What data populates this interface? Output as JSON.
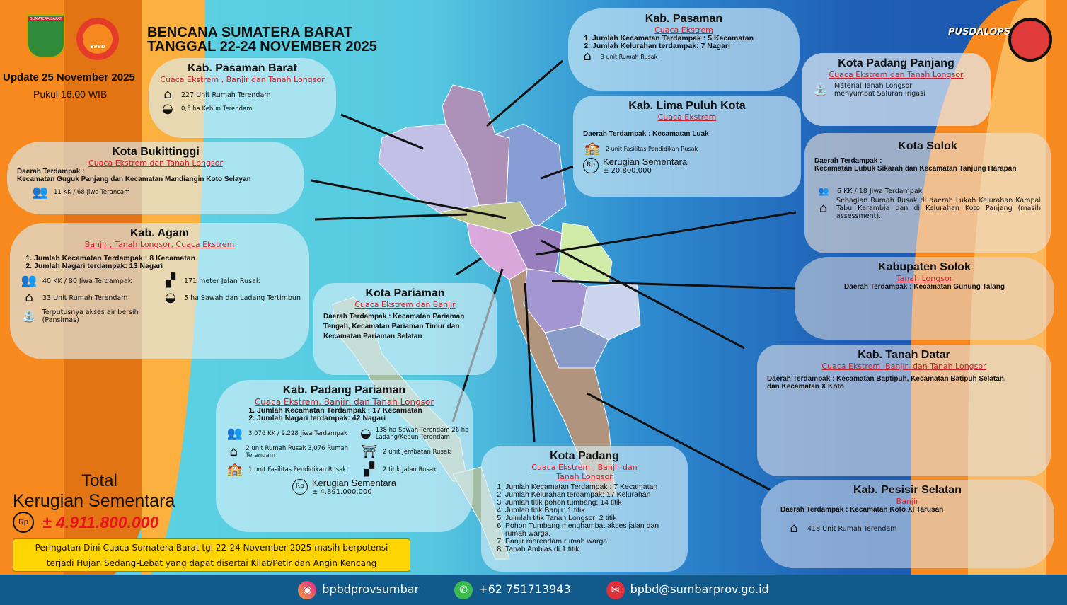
{
  "header": {
    "title1": "BENCANA SUMATERA BARAT",
    "title2": "TANGGAL 22-24 NOVEMBER 2025",
    "update": "Update 25 November 2025",
    "time": "Pukul 16.00 WIB",
    "logo1": "SUMATERA BARAT",
    "logo2": "BPBD",
    "logo3": "PUSDALOPS"
  },
  "pasaman_barat": {
    "title": "Kab. Pasaman Barat",
    "sub": "Cuaca Ekstrem , Banjir dan Tanah Longsor",
    "i1": "227 Unit Rumah Terendam",
    "i2": "0,5 ha Kebun Terendam"
  },
  "bukittinggi": {
    "title": "Kota Bukittinggi",
    "sub": "Cuaca Ekstrem dan Tanah Longsor",
    "d1": "Daerah Terdampak :",
    "d2": "Kecamatan Guguk Panjang dan Kecamatan Mandiangin Koto Selayan",
    "i1": "11 KK / 68 Jiwa Terancam"
  },
  "agam": {
    "title": "Kab. Agam",
    "sub": "Banjir , Tanah Longsor, Cuaca Ekstrem",
    "l1": "Jumlah Kecamatan Terdampak : 8 Kecamatan",
    "l2": "Jumlah Nagari terdampak: 13 Nagari",
    "i1": "40 KK / 80 Jiwa Terdampak",
    "i2": "171 meter Jalan Rusak",
    "i3": "33 Unit Rumah Terendam",
    "i4": "5 ha Sawah dan Ladang Tertimbun",
    "i5": "Terputusnya akses air bersih (Pansimas)"
  },
  "pariaman": {
    "title": "Kota Pariaman",
    "sub": "Cuaca Ekstrem dan Banjir",
    "d": "Daerah Terdampak : Kecamatan Pariaman Tengah, Kecamatan Pariaman Timur dan Kecamatan Pariaman Selatan"
  },
  "padang_pariaman": {
    "title": "Kab. Padang Pariaman",
    "sub": "Cuaca Ekstrem, Banjir, dan Tanah Longsor",
    "l1": "Jumlah Kecamatan Terdampak : 17 Kecamatan",
    "l2": "Jumlah Nagari terdampak: 42 Nagari",
    "i1": "3.076 KK / 9.228 Jiwa Terdampak",
    "i2": "138 ha Sawah Terendam 26 ha Ladang/Kebun Terendam",
    "i3": "2 unit Rumah Rusak 3,076 Rumah Terendam",
    "i4": "2 unit Jembatan Rusak",
    "i5": "1 unit Fasilitas Pendidikan Rusak",
    "i6": "2 titik Jalan Rusak",
    "loss_label": "Kerugian Sementara",
    "loss": "± 4.891.000.000"
  },
  "padang": {
    "title": "Kota Padang",
    "sub": "Cuaca Ekstrem , Banjir dan Tanah Longsor",
    "items": [
      "Jumlah Kecamatan Terdampak : 7 Kecamatan",
      "Jumlah Kelurahan terdampak: 17 Kelurahan",
      "Jumlah titik pohon tumbang: 14 titik",
      "Jumlah titik Banjir: 1 titik",
      "Juimlah titik Tanah Longsor: 2 titik",
      "Pohon Tumbang menghambat akses jalan dan rumah warga.",
      "Banjir merendam rumah warga",
      "Tanah Amblas di 1 titik"
    ]
  },
  "pasaman": {
    "title": "Kab. Pasaman",
    "sub": "Cuaca Ekstrem",
    "l1": "Jumlah Kecamatan Terdampak : 5 Kecamatan",
    "l2": "Jumlah Kelurahan terdampak: 7 Nagari",
    "i1": "3 unit Rumah Rusak"
  },
  "lima_puluh": {
    "title": "Kab. Lima Puluh Kota",
    "sub": "Cuaca Ekstrem",
    "d": "Daerah Terdampak : Kecamatan Luak",
    "i1": "2 unit Fasilitas Pendidikan Rusak",
    "loss_label": "Kerugian Sementara",
    "loss": "± 20.800.000"
  },
  "padang_panjang": {
    "title": "Kota Padang Panjang",
    "sub": "Cuaca Ekstrem dan Tanah Longsor",
    "i1": "Material Tanah Longsor menyumbat Saluran Irigasi"
  },
  "kota_solok": {
    "title": "Kota Solok",
    "d1": "Daerah Terdampak :",
    "d2": "Kecamatan Lubuk Sikarah dan Kecamatan Tanjung Harapan",
    "i1": "6 KK / 18 Jiwa Terdampak",
    "i2": "Sebagian Rumah Rusak di daerah Lukah Kelurahan Kampai Tabu Karambia dan di Kelurahan Koto Panjang (masih assessment)."
  },
  "kab_solok": {
    "title": "Kabupaten Solok",
    "sub": "Tanah Longsor",
    "d": "Daerah Terdampak : Kecamatan Gunung Talang"
  },
  "tanah_datar": {
    "title": "Kab. Tanah Datar",
    "sub": "Cuaca Ekstrem ,Banjir, dan Tanah Longsor",
    "d": "Daerah Terdampak : Kecamatan Baptipuh, Kecamatan Batipuh Selatan, dan Kecamatan X Koto"
  },
  "pesisir_selatan": {
    "title": "Kab. Pesisir Selatan",
    "sub": "Banjir",
    "d": "Daerah Terdampak : Kecamatan Koto XI Tarusan",
    "i1": "418 Unit Rumah Terendam"
  },
  "total": {
    "l1": "Total",
    "l2": "Kerugian Sementara",
    "value": "± 4.911.800.000"
  },
  "warning": {
    "l1": "Peringatan Dini Cuaca Sumatera Barat tgl 22-24 November 2025 masih berpotensi",
    "l2": "terjadi Hujan Sedang-Lebat yang dapat disertai Kilat/Petir dan Angin Kencang"
  },
  "footer": {
    "instagram": "bpbdprovsumbar",
    "phone": "+62 751713943",
    "email": "bpbd@sumbarprov.go.id"
  },
  "colors": {
    "accent_red": "#d0202a",
    "orange": "#f7891f",
    "footer": "#135a8c",
    "warning": "#ffd400"
  }
}
